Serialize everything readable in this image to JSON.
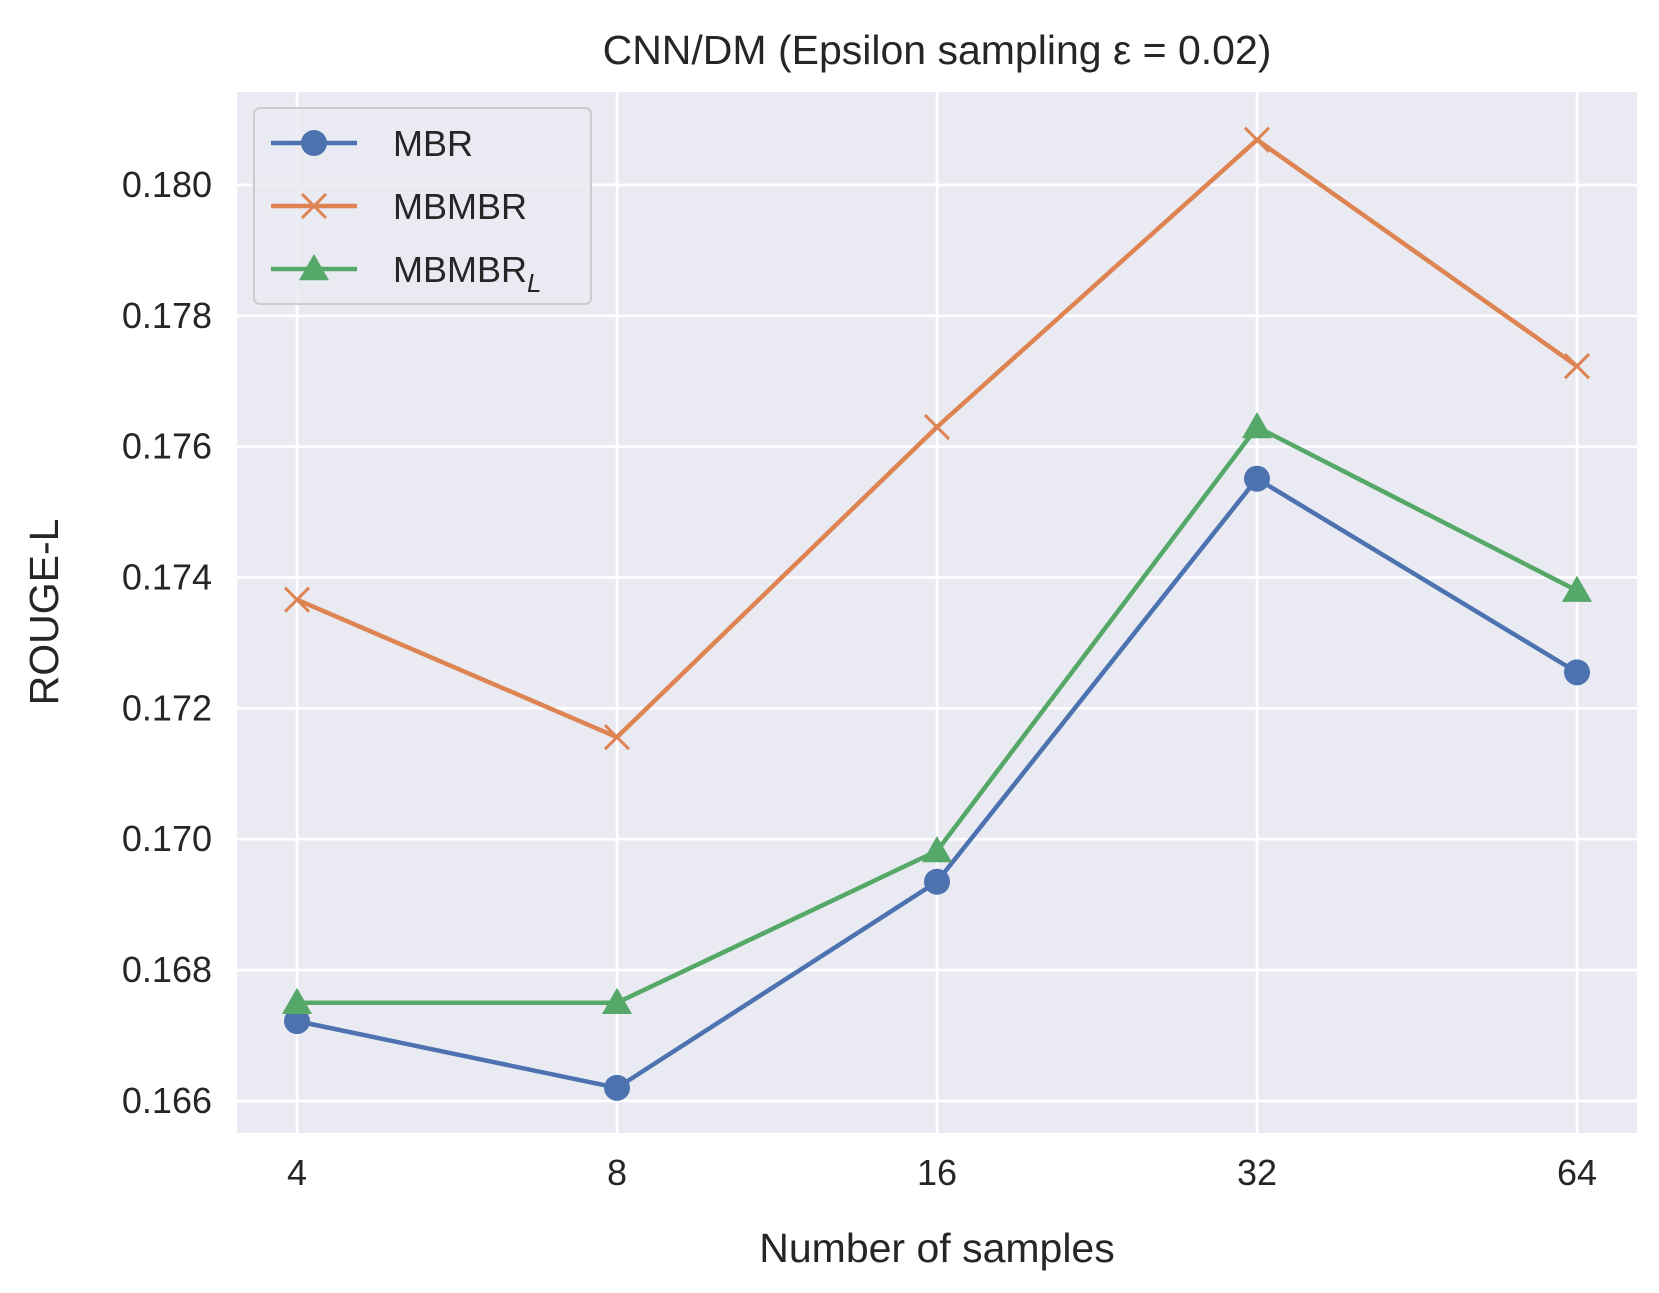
{
  "chart_data": {
    "type": "line",
    "title": "CNN/DM (Epsilon sampling ε = 0.02)",
    "xlabel": "Number of samples",
    "ylabel": "ROUGE-L",
    "categories": [
      "4",
      "8",
      "16",
      "32",
      "64"
    ],
    "yticks": [
      "0.166",
      "0.168",
      "0.170",
      "0.172",
      "0.174",
      "0.176",
      "0.178",
      "0.180"
    ],
    "ylim": [
      0.16551,
      0.18142
    ],
    "grid": true,
    "background": "#eaeaf2",
    "legend_position": "top-left",
    "series": [
      {
        "name": "MBR",
        "name_sub": "",
        "marker": "circle",
        "color": "#4c72b0",
        "values": [
          0.16722,
          0.1662,
          0.16935,
          0.17551,
          0.17255
        ]
      },
      {
        "name": "MBMBR",
        "name_sub": "",
        "marker": "x",
        "color": "#dd8452",
        "values": [
          0.17366,
          0.17156,
          0.1763,
          0.18069,
          0.17723
        ]
      },
      {
        "name": "MBMBR",
        "name_sub": "L",
        "marker": "triangle",
        "color": "#55a868",
        "values": [
          0.1675,
          0.1675,
          0.16982,
          0.1763,
          0.1738
        ]
      }
    ]
  }
}
